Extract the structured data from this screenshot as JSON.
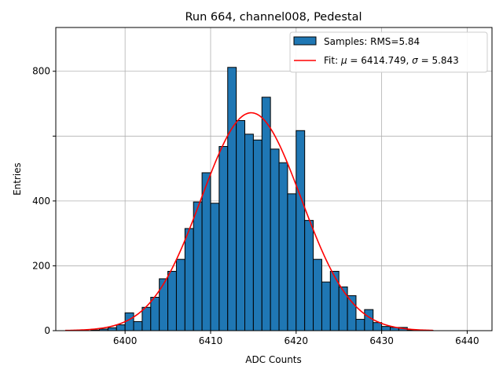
{
  "chart_data": {
    "type": "bar",
    "title": "Run 664, channel008, Pedestal",
    "xlabel": "ADC Counts",
    "ylabel": "Entries",
    "xlim": [
      6391.9,
      6442.9
    ],
    "ylim": [
      0,
      935
    ],
    "xticks": [
      6400,
      6410,
      6420,
      6430,
      6440
    ],
    "yticks": [
      0,
      200,
      400,
      800
    ],
    "yticks_all": [
      0,
      200,
      400,
      600,
      800
    ],
    "grid": true,
    "legend_position": "top-right",
    "bin_width": 1,
    "bin_edges_start": 6396,
    "counts": [
      2,
      5,
      9,
      18,
      55,
      28,
      72,
      103,
      160,
      183,
      220,
      315,
      397,
      487,
      393,
      568,
      812,
      648,
      606,
      588,
      720,
      560,
      518,
      422,
      617,
      340,
      220,
      150,
      183,
      135,
      108,
      35,
      65,
      25,
      13,
      10,
      10,
      2,
      2,
      1
    ],
    "series": [
      {
        "name": "Samples: RMS=5.84",
        "kind": "histogram",
        "color": "#1f77b4"
      },
      {
        "name": "Fit: μ = 6414.749, σ = 5.843",
        "kind": "gaussian-fit",
        "color": "#ff0000",
        "mu": 6414.749,
        "sigma": 5.843,
        "amplitude": 672,
        "range": [
          6393,
          6436
        ]
      }
    ]
  },
  "legend": {
    "hist_label": "Samples: RMS=5.84",
    "fit_label_prefix": "Fit: ",
    "fit_mu_sym": "μ",
    "fit_mu_val": " = 6414.749, ",
    "fit_sigma_sym": "σ",
    "fit_sigma_val": " = 5.843"
  }
}
